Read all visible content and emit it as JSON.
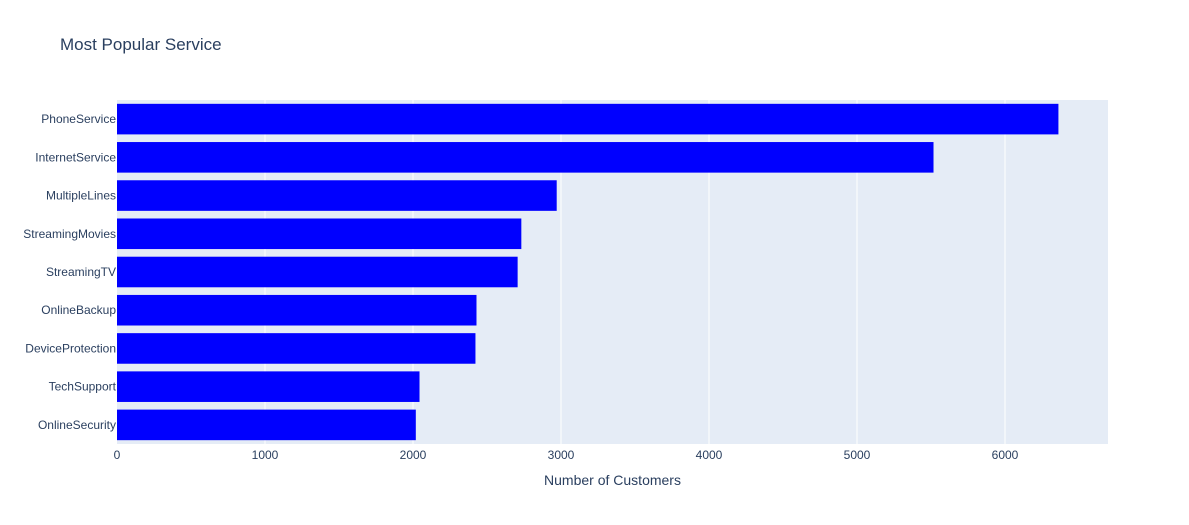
{
  "chart_data": {
    "type": "bar",
    "orientation": "horizontal",
    "title": "Most Popular Service",
    "xlabel": "Number of Customers",
    "ylabel": "",
    "categories": [
      "PhoneService",
      "InternetService",
      "MultipleLines",
      "StreamingMovies",
      "StreamingTV",
      "OnlineBackup",
      "DeviceProtection",
      "TechSupport",
      "OnlineSecurity"
    ],
    "values": [
      6361,
      5517,
      2971,
      2732,
      2707,
      2429,
      2422,
      2044,
      2019
    ],
    "xlim": [
      0,
      6696
    ],
    "xticks": [
      0,
      1000,
      2000,
      3000,
      4000,
      5000,
      6000
    ],
    "xtick_labels": [
      "0",
      "1000",
      "2000",
      "3000",
      "4000",
      "5000",
      "6000"
    ],
    "grid": true,
    "legend": "none",
    "colors": {
      "bar": "#0000ff",
      "plot_bg": "#e5ecf6",
      "grid": "#ffffff",
      "text": "#2a3f5f"
    }
  }
}
